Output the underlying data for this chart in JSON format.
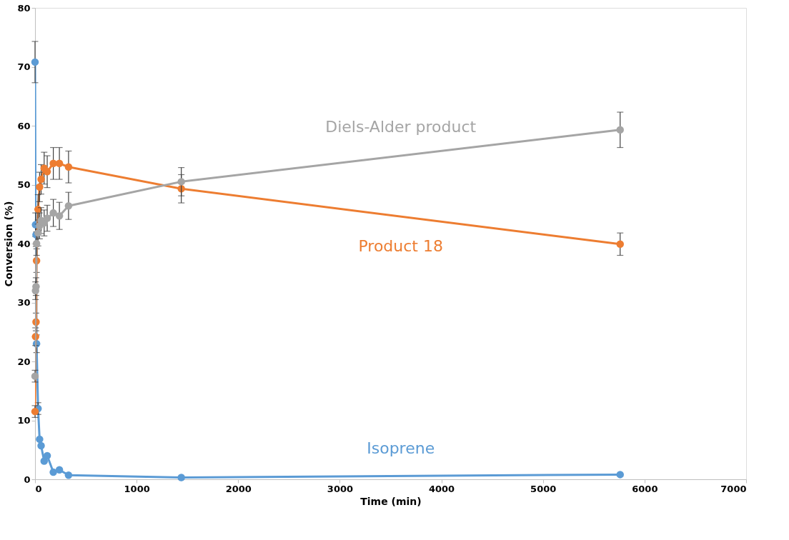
{
  "chart_data": {
    "type": "line",
    "xlabel": "Time (min)",
    "ylabel": "Conversion (%)",
    "xlim": [
      0,
      7000
    ],
    "xticks": [
      0,
      1000,
      2000,
      3000,
      4000,
      5000,
      6000,
      7000
    ],
    "ylim": [
      0,
      80
    ],
    "yticks": [
      0,
      10,
      20,
      30,
      40,
      50,
      60,
      70,
      80
    ],
    "grid": false,
    "legend": false,
    "marker": "circle",
    "line_style": "solid",
    "x": [
      0,
      5,
      10,
      15,
      30,
      45,
      60,
      90,
      120,
      180,
      240,
      330,
      1440,
      5760
    ],
    "series": [
      {
        "name": "Isoprene",
        "color": "#5b9bd5",
        "values": [
          70.8,
          43.2,
          41.5,
          23,
          12,
          6.8,
          5.7,
          3.1,
          4.0,
          1.2,
          1.6,
          0.7,
          0.3,
          0.8
        ],
        "errors": [
          3.5,
          2,
          2,
          1.5,
          1,
          null,
          null,
          null,
          null,
          null,
          null,
          null,
          null,
          null
        ]
      },
      {
        "name": "Product 18",
        "color": "#ed7d31",
        "values": [
          11.5,
          24.2,
          26.7,
          37.1,
          45.8,
          49.6,
          50.9,
          52.8,
          52.2,
          53.6,
          53.6,
          53.0,
          49.3,
          39.9
        ],
        "errors": [
          1,
          1.5,
          1.5,
          2,
          2.5,
          2.5,
          2.5,
          2.7,
          2.7,
          2.7,
          2.7,
          2.7,
          2.4,
          1.9
        ]
      },
      {
        "name": "Diels-Alder product",
        "color": "#a5a5a5",
        "values": [
          17.5,
          32.0,
          32.7,
          40.0,
          41.8,
          43.0,
          43.9,
          43.5,
          44.3,
          45.2,
          44.7,
          46.4,
          50.5,
          59.3
        ],
        "errors": [
          1,
          1.5,
          1.5,
          2,
          2.2,
          2.2,
          2.2,
          2.2,
          2.2,
          2.3,
          2.3,
          2.3,
          2.4,
          3
        ]
      }
    ]
  }
}
